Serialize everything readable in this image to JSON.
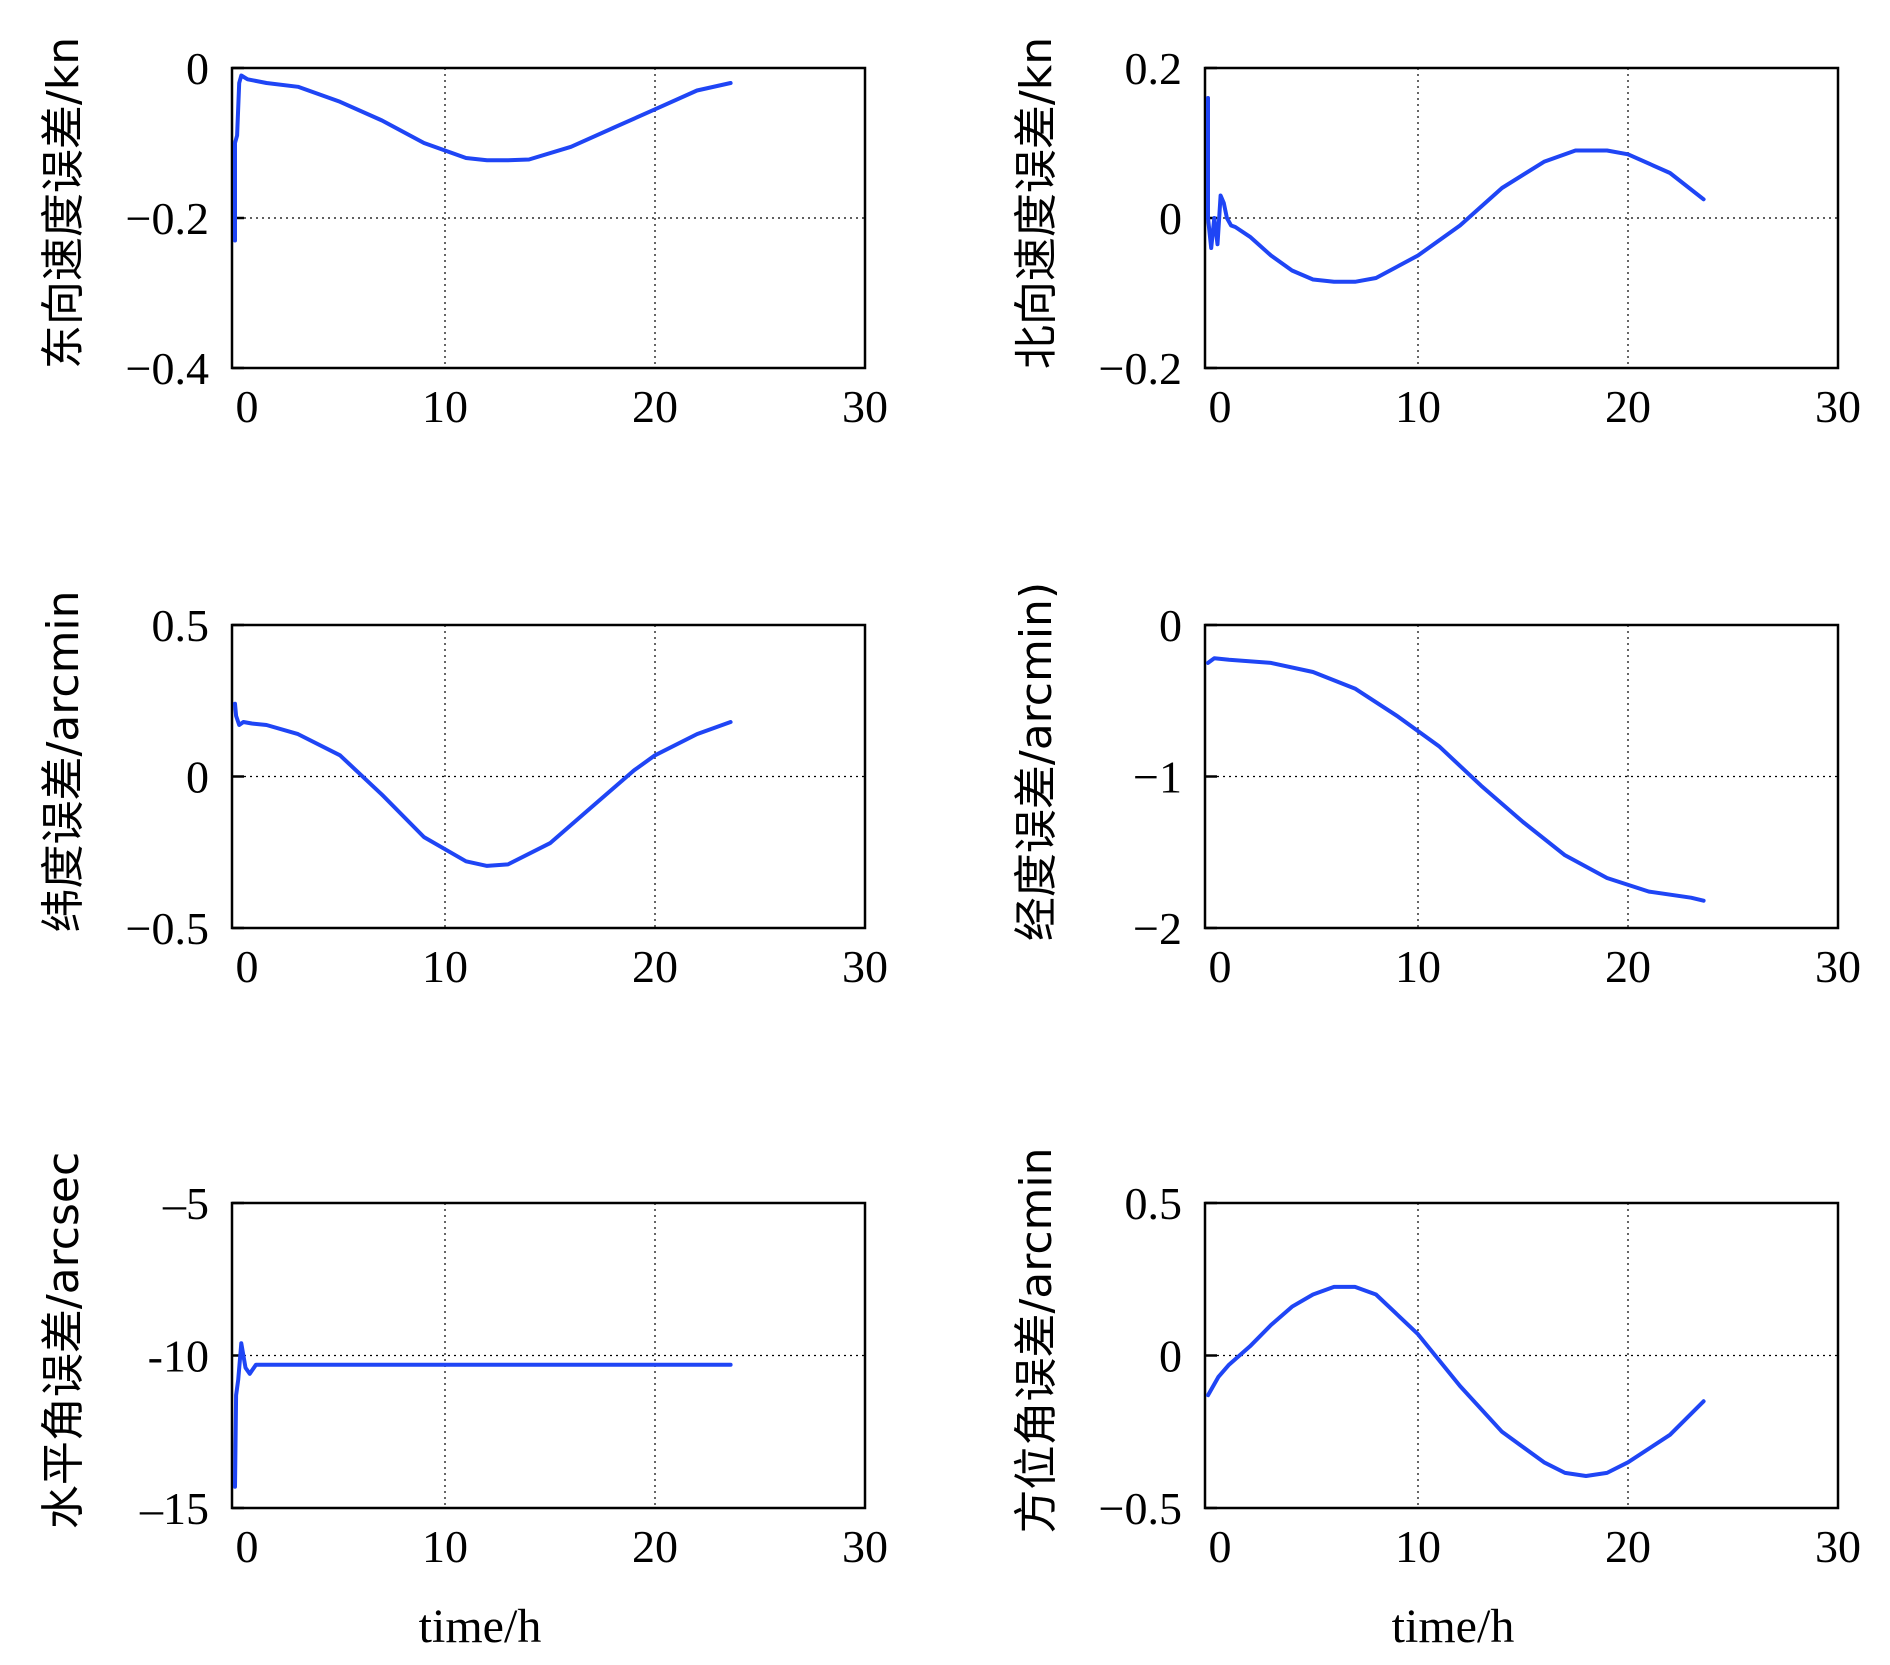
{
  "colors": {
    "series": "#1f45f5",
    "axis": "#000000"
  },
  "chart_data": [
    {
      "type": "line",
      "ylabel": "东向速度误差/kn",
      "xlabel": "",
      "xlim": [
        0,
        30
      ],
      "ylim": [
        -0.4,
        0
      ],
      "xticks": [
        "0",
        "10",
        "20",
        "30"
      ],
      "yticks": [
        "-0.4",
        "-0.2",
        "0"
      ],
      "yticklabels": [
        "−0.4",
        "−0.2",
        "0"
      ],
      "grid": true,
      "series": [
        {
          "x": [
            0,
            0,
            0.1,
            0.2,
            0.3,
            0.6,
            1.5,
            3,
            5,
            7,
            9,
            11,
            12,
            13,
            14,
            16,
            18,
            20,
            22,
            23.6
          ],
          "y": [
            -0.23,
            -0.1,
            -0.09,
            -0.02,
            -0.01,
            -0.015,
            -0.02,
            -0.025,
            -0.045,
            -0.07,
            -0.1,
            -0.12,
            -0.123,
            -0.123,
            -0.122,
            -0.105,
            -0.08,
            -0.055,
            -0.03,
            -0.02
          ]
        }
      ]
    },
    {
      "type": "line",
      "ylabel": "北向速度误差/kn",
      "xlabel": "",
      "xlim": [
        0,
        30
      ],
      "ylim": [
        -0.2,
        0.2
      ],
      "xticks": [
        "0",
        "10",
        "20",
        "30"
      ],
      "yticks": [
        "-0.2",
        "0",
        "0.2"
      ],
      "yticklabels": [
        "−0.2",
        "0",
        "0.2"
      ],
      "grid": true,
      "series": [
        {
          "x": [
            0,
            0,
            0.15,
            0.3,
            0.45,
            0.6,
            0.75,
            0.9,
            1.1,
            1.3,
            2,
            3,
            4,
            5,
            6,
            7,
            8,
            10,
            12,
            14,
            16,
            17.5,
            19,
            20,
            22,
            23.6
          ],
          "y": [
            0.16,
            0.0,
            -0.04,
            0.0,
            -0.035,
            0.03,
            0.02,
            0.0,
            -0.01,
            -0.012,
            -0.025,
            -0.05,
            -0.07,
            -0.082,
            -0.085,
            -0.085,
            -0.08,
            -0.05,
            -0.01,
            0.04,
            0.075,
            0.09,
            0.09,
            0.085,
            0.06,
            0.025
          ]
        }
      ]
    },
    {
      "type": "line",
      "ylabel": "纬度误差/arcmin",
      "xlabel": "",
      "xlim": [
        0,
        30
      ],
      "ylim": [
        -0.5,
        0.5
      ],
      "xticks": [
        "0",
        "10",
        "20",
        "30"
      ],
      "yticks": [
        "-0.5",
        "0",
        "0.5"
      ],
      "yticklabels": [
        "−0.5",
        "0",
        "0.5"
      ],
      "grid": true,
      "series": [
        {
          "x": [
            0,
            0.05,
            0.2,
            0.4,
            0.8,
            1.5,
            3,
            5,
            7,
            9,
            11,
            12,
            13,
            15,
            17,
            19,
            20,
            22,
            23.6
          ],
          "y": [
            0.24,
            0.2,
            0.17,
            0.18,
            0.175,
            0.17,
            0.14,
            0.07,
            -0.06,
            -0.2,
            -0.28,
            -0.295,
            -0.29,
            -0.22,
            -0.1,
            0.02,
            0.07,
            0.14,
            0.18
          ]
        }
      ]
    },
    {
      "type": "line",
      "ylabel": "经度误差/arcmin)",
      "xlabel": "",
      "xlim": [
        0,
        30
      ],
      "ylim": [
        -2,
        0
      ],
      "xticks": [
        "0",
        "10",
        "20",
        "30"
      ],
      "yticks": [
        "-2",
        "-1",
        "0"
      ],
      "yticklabels": [
        "−2",
        "−1",
        "0"
      ],
      "grid": true,
      "series": [
        {
          "x": [
            0,
            0.3,
            1,
            3,
            5,
            7,
            9,
            11,
            13,
            15,
            17,
            19,
            21,
            23,
            23.6
          ],
          "y": [
            -0.25,
            -0.22,
            -0.23,
            -0.25,
            -0.31,
            -0.42,
            -0.6,
            -0.8,
            -1.06,
            -1.3,
            -1.52,
            -1.67,
            -1.76,
            -1.8,
            -1.82
          ]
        }
      ]
    },
    {
      "type": "line",
      "ylabel": "水平角误差/arcsec",
      "xlabel": "time/h",
      "xlim": [
        0,
        30
      ],
      "ylim": [
        -15,
        -5
      ],
      "xticks": [
        "0",
        "10",
        "20",
        "30"
      ],
      "yticks": [
        "-15",
        "-10",
        "-5"
      ],
      "yticklabels": [
        "–15",
        "-10",
        "–5"
      ],
      "grid": true,
      "series": [
        {
          "x": [
            0,
            0.05,
            0.15,
            0.3,
            0.5,
            0.7,
            1,
            2,
            5,
            10,
            15,
            20,
            23.6
          ],
          "y": [
            -14.3,
            -11.3,
            -10.8,
            -9.6,
            -10.4,
            -10.6,
            -10.3,
            -10.3,
            -10.3,
            -10.3,
            -10.3,
            -10.3,
            -10.3
          ]
        }
      ]
    },
    {
      "type": "line",
      "ylabel": "方位角误差/arcmin",
      "xlabel": "time/h",
      "xlim": [
        0,
        30
      ],
      "ylim": [
        -0.5,
        0.5
      ],
      "xticks": [
        "0",
        "10",
        "20",
        "30"
      ],
      "yticks": [
        "-0.5",
        "0",
        "0.5"
      ],
      "yticklabels": [
        "−0.5",
        "0",
        "0.5"
      ],
      "grid": true,
      "series": [
        {
          "x": [
            0,
            0.5,
            1,
            2,
            3,
            4,
            5,
            6,
            7,
            8,
            10,
            12,
            14,
            16,
            17,
            18,
            19,
            20,
            22,
            23.6
          ],
          "y": [
            -0.13,
            -0.07,
            -0.03,
            0.03,
            0.1,
            0.16,
            0.2,
            0.225,
            0.225,
            0.2,
            0.07,
            -0.1,
            -0.25,
            -0.35,
            -0.385,
            -0.395,
            -0.385,
            -0.35,
            -0.26,
            -0.15
          ]
        }
      ]
    }
  ]
}
